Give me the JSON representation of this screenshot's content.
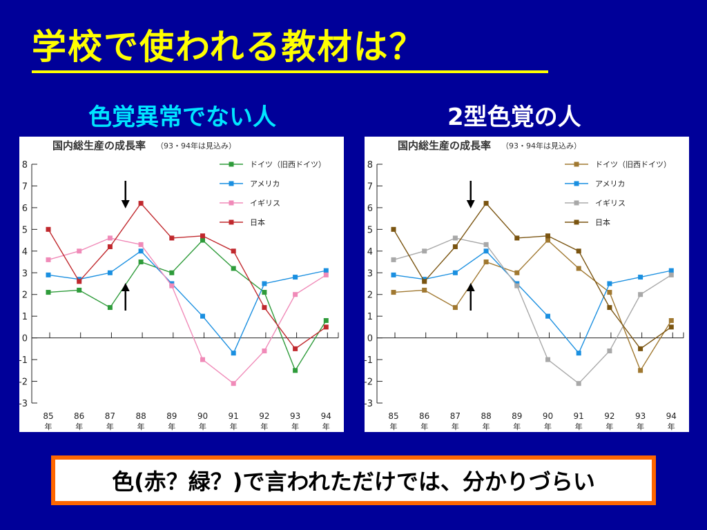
{
  "slide": {
    "title": "学校で使われる教材は？",
    "left_label": "色覚異常でない人",
    "right_label": "2型色覚の人",
    "note": "色(赤？緑？)で言われただけでは、分かりづらい"
  },
  "chart_data": [
    {
      "type": "line",
      "title": "国内総生産の成長率",
      "subtitle": "（93・94年は見込み）",
      "categories": [
        "85",
        "86",
        "87",
        "88",
        "89",
        "90",
        "91",
        "92",
        "93",
        "94"
      ],
      "category_suffix": "年",
      "ylim": [
        -3,
        8
      ],
      "yticks": [
        "8",
        "7",
        "6",
        "5",
        "4",
        "3",
        "2",
        "1",
        "0",
        "-1",
        "-2",
        "-3"
      ],
      "legend_position": "top-right",
      "series": [
        {
          "name": "ドイツ（旧西ドイツ）",
          "color": "#2e9b3a",
          "values": [
            2.1,
            2.2,
            1.4,
            3.5,
            3.0,
            4.5,
            3.2,
            2.1,
            -1.5,
            0.8
          ]
        },
        {
          "name": "アメリカ",
          "color": "#1a8fe0",
          "values": [
            2.9,
            2.7,
            3.0,
            4.0,
            2.5,
            1.0,
            -0.7,
            2.5,
            2.8,
            3.1
          ]
        },
        {
          "name": "イギリス",
          "color": "#f08ab8",
          "values": [
            3.6,
            4.0,
            4.6,
            4.3,
            2.4,
            -1.0,
            -2.1,
            -0.6,
            2.0,
            2.9
          ]
        },
        {
          "name": "日本",
          "color": "#c0282d",
          "values": [
            5.0,
            2.6,
            4.2,
            6.2,
            4.6,
            4.7,
            4.0,
            1.4,
            -0.5,
            0.5
          ]
        }
      ]
    },
    {
      "type": "line",
      "title": "国内総生産の成長率",
      "subtitle": "（93・94年は見込み）",
      "categories": [
        "85",
        "86",
        "87",
        "88",
        "89",
        "90",
        "91",
        "92",
        "93",
        "94"
      ],
      "category_suffix": "年",
      "ylim": [
        -3,
        8
      ],
      "yticks": [
        "8",
        "7",
        "6",
        "5",
        "4",
        "3",
        "2",
        "1",
        "0",
        "-1",
        "-2",
        "-3"
      ],
      "legend_position": "top-right",
      "series": [
        {
          "name": "ドイツ（旧西ドイツ）",
          "color": "#a07830",
          "values": [
            2.1,
            2.2,
            1.4,
            3.5,
            3.0,
            4.5,
            3.2,
            2.1,
            -1.5,
            0.8
          ]
        },
        {
          "name": "アメリカ",
          "color": "#1a8fe0",
          "values": [
            2.9,
            2.7,
            3.0,
            4.0,
            2.5,
            1.0,
            -0.7,
            2.5,
            2.8,
            3.1
          ]
        },
        {
          "name": "イギリス",
          "color": "#a8a8a8",
          "values": [
            3.6,
            4.0,
            4.6,
            4.3,
            2.4,
            -1.0,
            -2.1,
            -0.6,
            2.0,
            2.9
          ]
        },
        {
          "name": "日本",
          "color": "#7a5410",
          "values": [
            5.0,
            2.6,
            4.2,
            6.2,
            4.6,
            4.7,
            4.0,
            1.4,
            -0.5,
            0.5
          ]
        }
      ]
    }
  ]
}
